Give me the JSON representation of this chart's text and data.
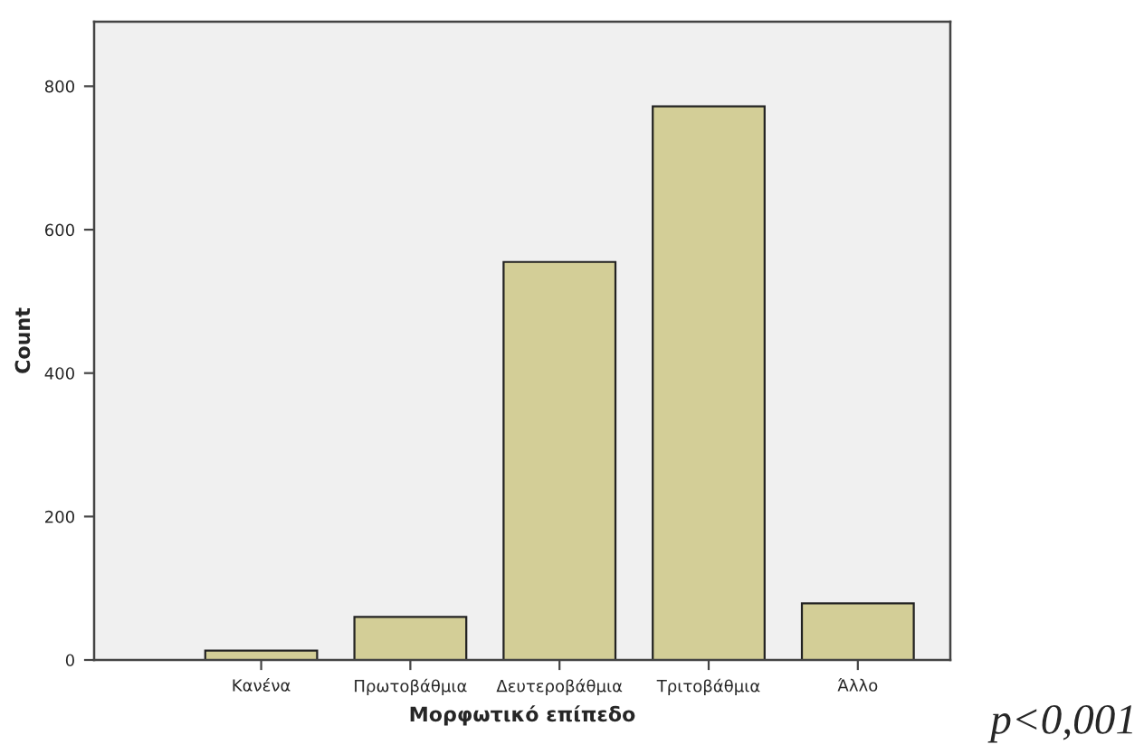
{
  "chart_data": {
    "type": "bar",
    "xlabel": "Μορφωτικό επίπεδο",
    "ylabel": "Count",
    "categories": [
      "Κανένα",
      "Πρωτοβάθμια",
      "Δευτεροβάθμια",
      "Τριτοβάθμια",
      "Άλλο"
    ],
    "values": [
      13,
      60,
      555,
      772,
      79
    ],
    "color": "#d3ce97",
    "ylim": [
      0,
      890
    ],
    "yticks": [
      0,
      200,
      400,
      600,
      800
    ],
    "grid": false,
    "annotations": [
      "p<0,001"
    ]
  }
}
